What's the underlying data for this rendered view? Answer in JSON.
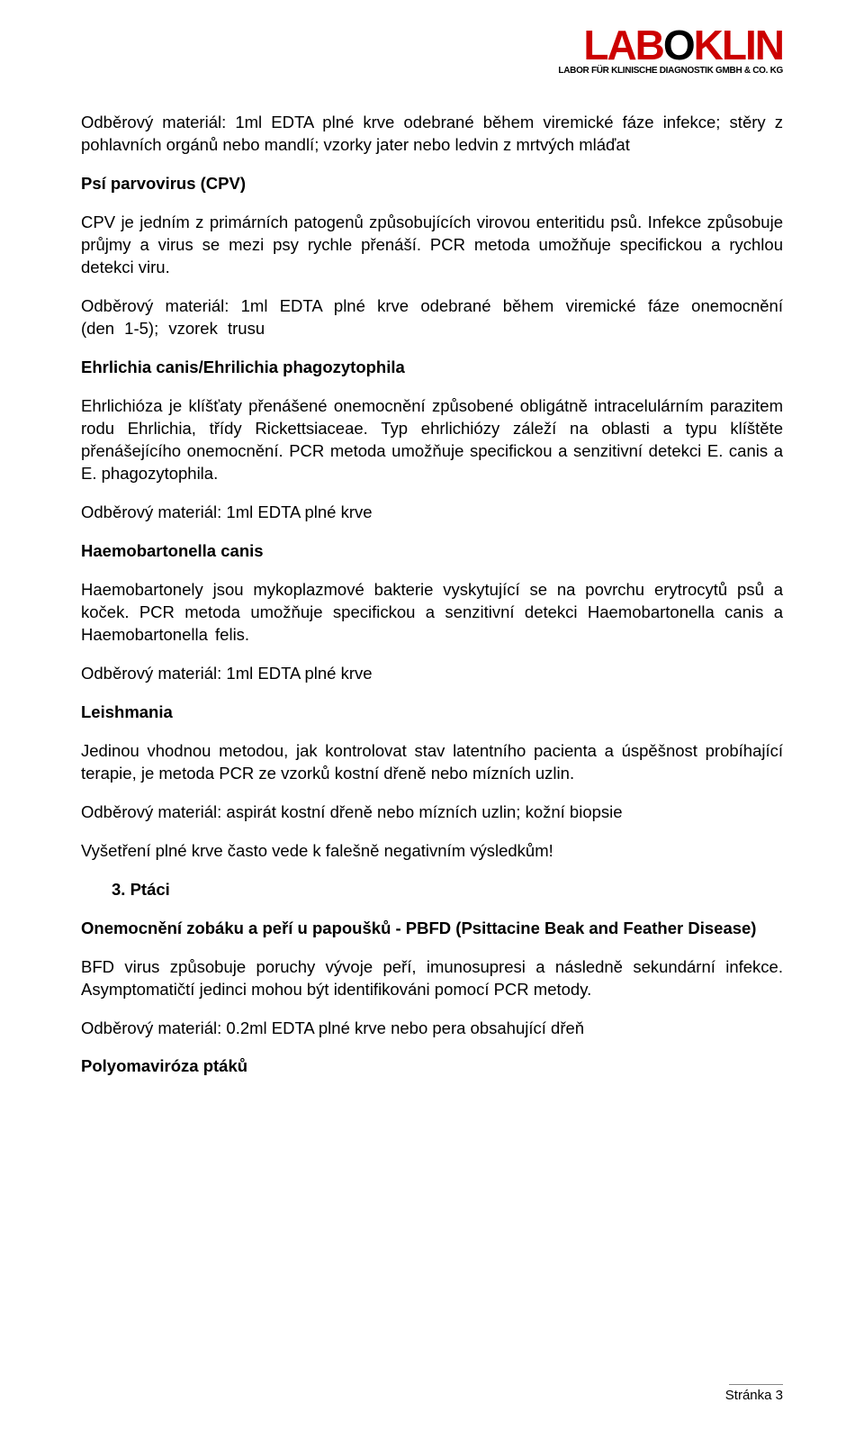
{
  "logo": {
    "text_pre": "LAB",
    "text_o": "O",
    "text_post": "KLIN",
    "subtitle": "LABOR FÜR KLINISCHE DIAGNOSTIK GMBH & CO. KG",
    "brand_color": "#cc0000"
  },
  "content": {
    "p1": "Odběrový materiál: 1ml EDTA plné krve odebrané během viremické fáze infekce; stěry z pohlavních orgánů nebo mandlí; vzorky jater nebo ledvin z mrtvých mláďat",
    "h1": "Psí parvovirus (CPV)",
    "p2": "CPV je jedním z primárních patogenů způsobujících virovou enteritidu psů. Infekce způsobuje průjmy a virus se mezi psy rychle přenáší. PCR metoda umožňuje specifickou a rychlou detekci viru.",
    "p3": "Odběrový materiál: 1ml EDTA plné krve odebrané během viremické fáze onemocnění (den 1-5); vzorek trusu",
    "h2": "Ehrlichia canis/Ehrilichia phagozytophila",
    "p4": "Ehrlichióza je klíšťaty přenášené onemocnění způsobené obligátně intracelulárním parazitem rodu Ehrlichia, třídy Rickettsiaceae. Typ ehrlichiózy záleží na oblasti a typu klíštěte přenášejícího onemocnění. PCR metoda umožňuje specifickou a senzitivní detekci E. canis a E. phagozytophila.",
    "p5": "Odběrový materiál: 1ml EDTA plné krve",
    "h3": "Haemobartonella canis",
    "p6": "Haemobartonely jsou mykoplazmové bakterie vyskytující se na povrchu erytrocytů psů a koček. PCR metoda umožňuje specifickou a senzitivní detekci Haemobartonella canis a Haemobartonella felis.",
    "p7": "Odběrový materiál: 1ml EDTA plné krve",
    "h4": "Leishmania",
    "p8": "Jedinou vhodnou metodou, jak kontrolovat stav latentního pacienta a úspěšnost probíhající terapie, je metoda PCR ze vzorků kostní dřeně nebo mízních uzlin.",
    "p9": "Odběrový materiál: aspirát kostní dřeně nebo mízních uzlin; kožní biopsie",
    "p10": "Vyšetření plné krve často vede k falešně negativním výsledkům!",
    "h5": "3.  Ptáci",
    "h6": "Onemocnění zobáku a peří u papoušků - PBFD (Psittacine Beak and Feather Disease)",
    "p11": "BFD virus způsobuje poruchy vývoje peří, imunosupresi a následně sekundární infekce. Asymptomatičtí jedinci mohou být identifikováni pomocí PCR metody.",
    "p12": "Odběrový materiál: 0.2ml EDTA plné krve nebo pera obsahující dřeň",
    "h7": "Polyomaviróza ptáků"
  },
  "footer": {
    "text": "Stránka 3"
  }
}
